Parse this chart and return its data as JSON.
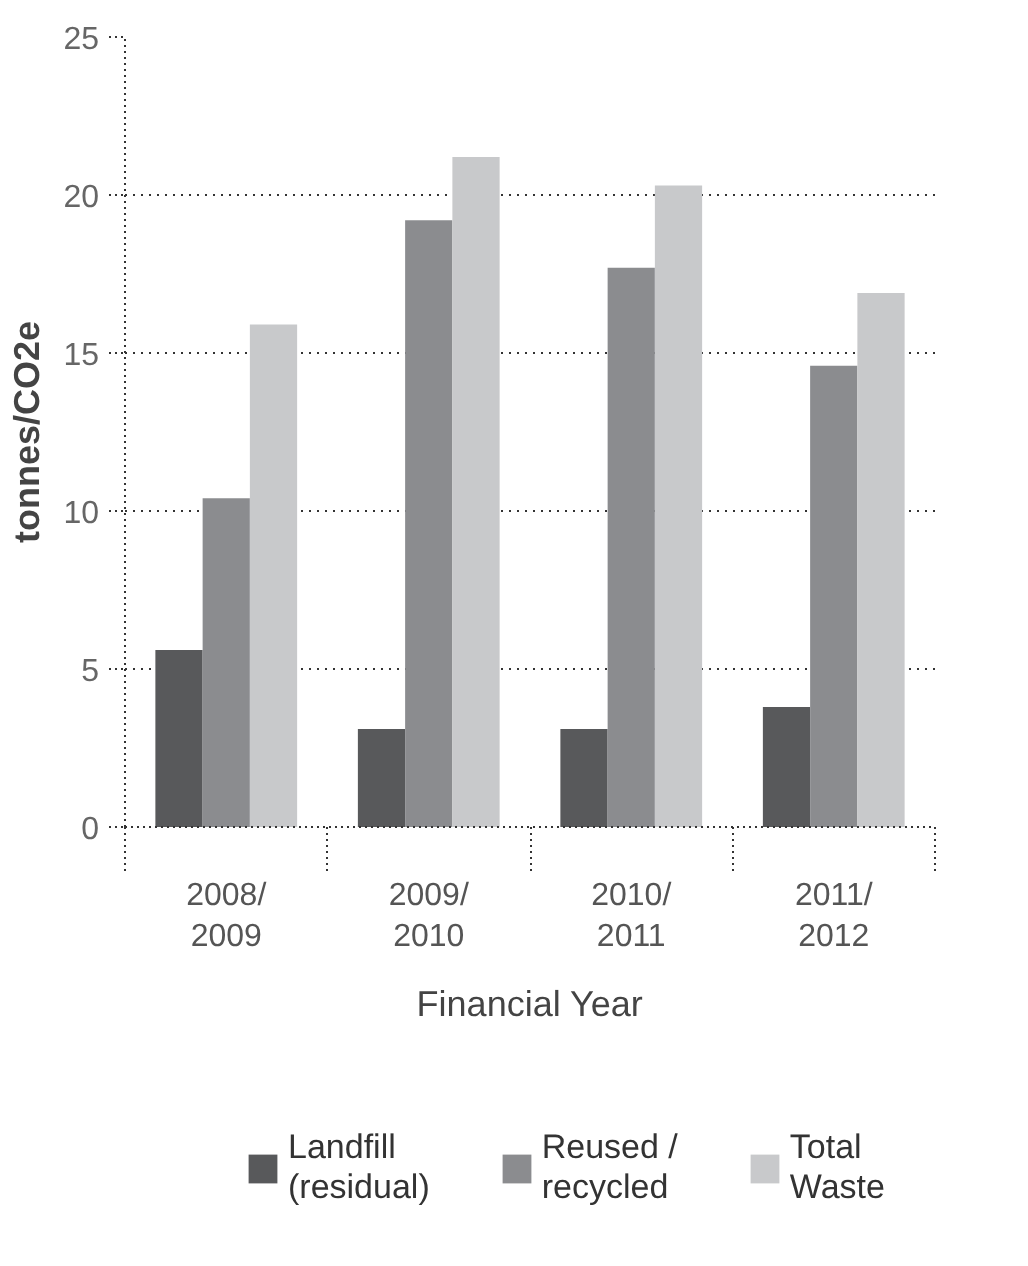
{
  "chart_data": {
    "type": "bar",
    "xlabel": "Financial Year",
    "ylabel": "tonnes/CO2e",
    "categories": [
      "2008/\n2009",
      "2009/\n2010",
      "2010/\n2011",
      "2011/\n2012"
    ],
    "series": [
      {
        "name": "Landfill\n(residual)",
        "color": "#58595b",
        "values": [
          5.6,
          3.1,
          3.1,
          3.8
        ]
      },
      {
        "name": "Reused /\nrecycled",
        "color": "#8b8c8f",
        "values": [
          10.4,
          19.2,
          17.7,
          14.6
        ]
      },
      {
        "name": "Total\nWaste",
        "color": "#c8c9cb",
        "values": [
          15.9,
          21.2,
          20.3,
          16.9
        ]
      }
    ],
    "ylim": [
      0,
      25
    ],
    "yticks": [
      0,
      5,
      10,
      15,
      20,
      25
    ],
    "grid": "y",
    "legend": "bottom"
  }
}
